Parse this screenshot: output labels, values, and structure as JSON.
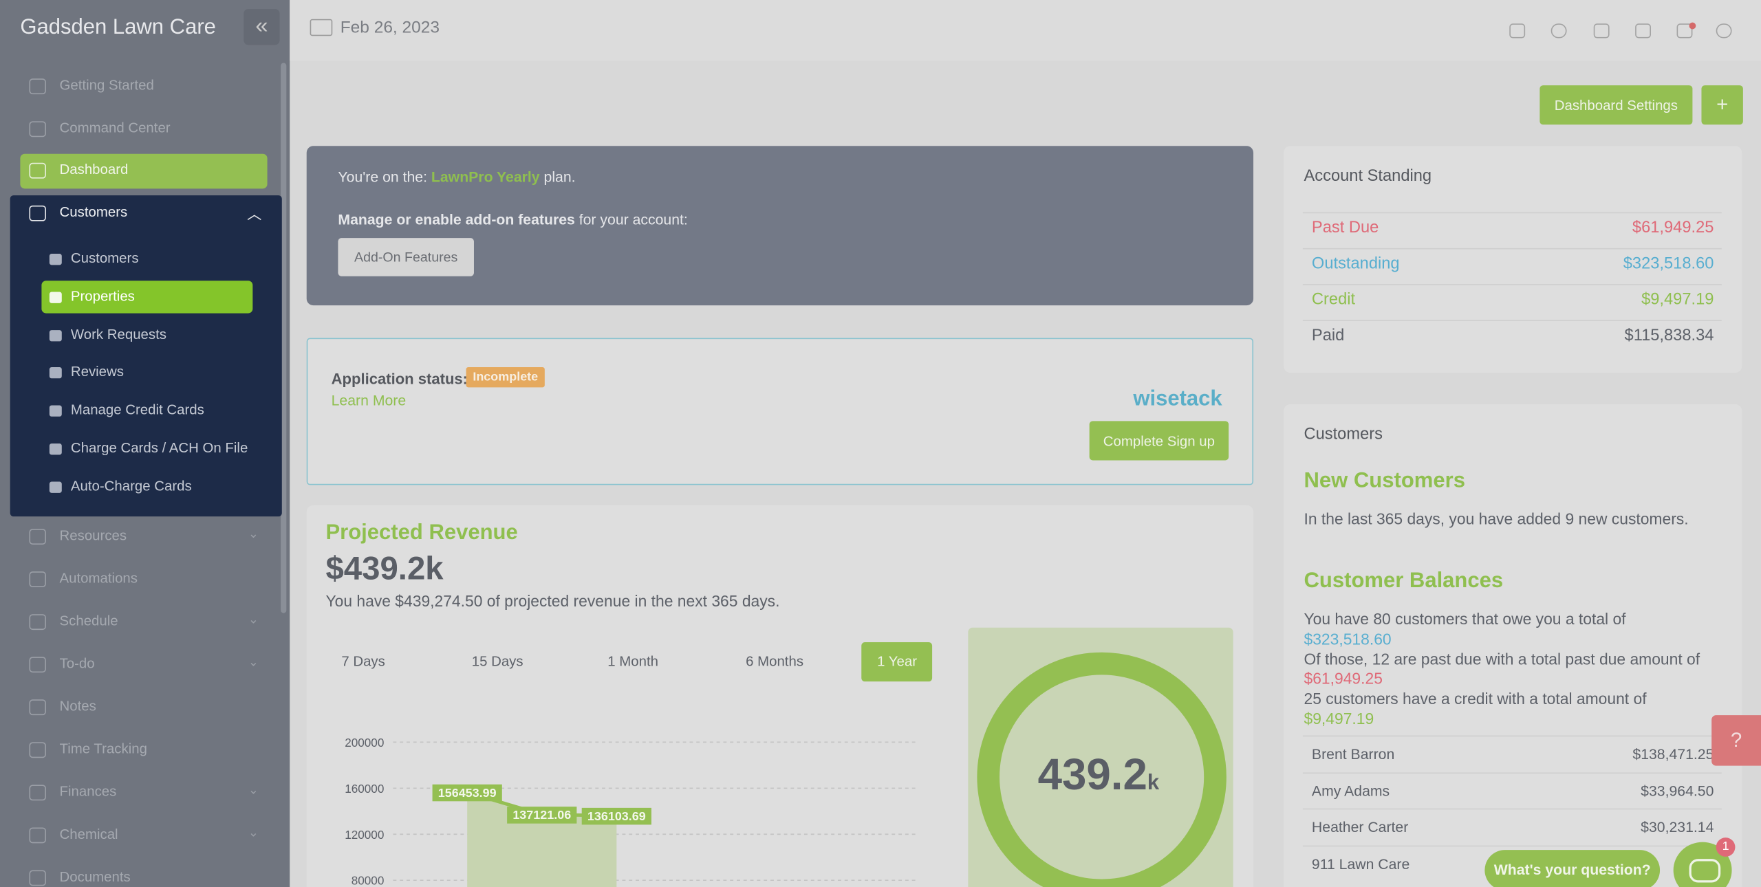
{
  "sidebar": {
    "brand": "Gadsden Lawn Care",
    "items_top": [
      {
        "label": "Getting Started",
        "expandable": false
      },
      {
        "label": "Command Center",
        "expandable": false
      },
      {
        "label": "Dashboard",
        "expandable": false,
        "active": true
      }
    ],
    "group": {
      "label": "Customers",
      "children": [
        "Customers",
        "Properties",
        "Work Requests",
        "Reviews",
        "Manage Credit Cards",
        "Charge Cards / ACH On File",
        "Auto-Charge Cards"
      ],
      "active_child": 1
    },
    "items_bottom": [
      {
        "label": "Resources",
        "expandable": true
      },
      {
        "label": "Automations",
        "expandable": false
      },
      {
        "label": "Schedule",
        "expandable": true
      },
      {
        "label": "To-do",
        "expandable": true
      },
      {
        "label": "Notes",
        "expandable": false
      },
      {
        "label": "Time Tracking",
        "expandable": false
      },
      {
        "label": "Finances",
        "expandable": true
      },
      {
        "label": "Chemical",
        "expandable": true
      },
      {
        "label": "Documents",
        "expandable": false
      }
    ]
  },
  "header": {
    "date": "Feb 26, 2023"
  },
  "buttons": {
    "settings": "Dashboard Settings",
    "add": "+"
  },
  "plan": {
    "prefix": "You're on the:",
    "plan": "LawnPro Yearly",
    "suffix": "plan.",
    "manage_bold": "Manage or enable add-on features",
    "manage_rest": "for your account:",
    "button": "Add-On Features"
  },
  "wisetack": {
    "status_label": "Application status:",
    "status": "Incomplete",
    "learn_more": "Learn More",
    "logo": "wisetack",
    "button": "Complete Sign up"
  },
  "revenue": {
    "title": "Projected Revenue",
    "amount": "$439.2k",
    "description": "You have $439,274.50 of projected revenue in the next 365 days.",
    "tabs": [
      "7 Days",
      "15 Days",
      "1 Month",
      "6 Months",
      "1 Year"
    ],
    "active_tab": 4,
    "donut_value": "439.2",
    "donut_unit": "k",
    "chart": {
      "type": "line",
      "ylim": [
        80000,
        200000
      ],
      "yticks": [
        200000,
        160000,
        120000,
        80000
      ],
      "values": [
        156453.99,
        137121.06,
        136103.69
      ],
      "color": "#94bf52"
    }
  },
  "account_standing": {
    "title": "Account Standing",
    "rows": [
      {
        "label": "Past Due",
        "amount": "$61,949.25",
        "color": "#df6a78"
      },
      {
        "label": "Outstanding",
        "amount": "$323,518.60",
        "color": "#58aed0"
      },
      {
        "label": "Credit",
        "amount": "$9,497.19",
        "color": "#8fbf4f"
      },
      {
        "label": "Paid",
        "amount": "$115,838.34",
        "color": "#5d6169"
      }
    ]
  },
  "customers": {
    "title": "Customers",
    "new_title": "New Customers",
    "new_text": "In the last 365 days, you have added 9 new customers.",
    "balances_title": "Customer Balances",
    "line1": "You have 80 customers that owe you a total of",
    "line1_amount": "$323,518.60",
    "line2": "Of those, 12 are past due with a total past due amount of",
    "line2_amount": "$61,949.25",
    "line3": "25 customers have a credit with a total amount of",
    "line3_amount": "$9,497.19",
    "top": [
      {
        "name": "Brent Barron",
        "amount": "$138,471.25"
      },
      {
        "name": "Amy Adams",
        "amount": "$33,964.50"
      },
      {
        "name": "Heather Carter",
        "amount": "$30,231.14"
      },
      {
        "name": "911 Lawn Care"
      }
    ]
  },
  "chat": {
    "prompt": "What's your question?",
    "badge": "1"
  }
}
